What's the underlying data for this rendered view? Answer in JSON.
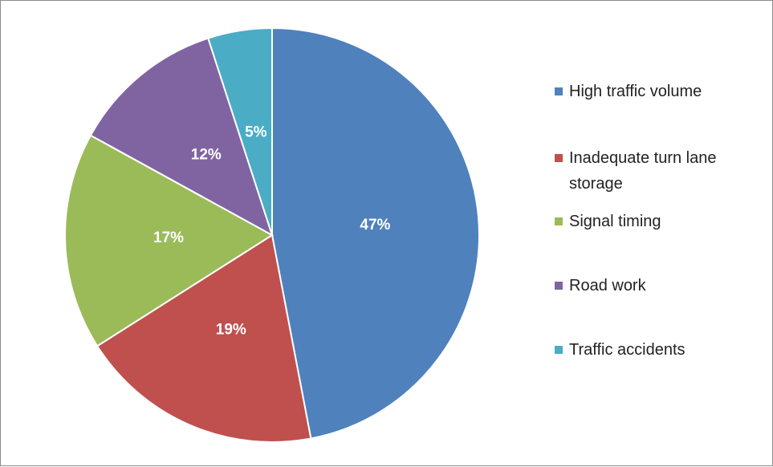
{
  "chart_data": {
    "type": "pie",
    "categories": [
      "High traffic volume",
      "Inadequate turn lane storage",
      "Signal timing",
      "Road work",
      "Traffic accidents"
    ],
    "values": [
      47,
      19,
      17,
      12,
      5
    ],
    "value_labels": [
      "47%",
      "19%",
      "17%",
      "12%",
      "5%"
    ],
    "colors": [
      "#4f81bd",
      "#c0504d",
      "#9bbb59",
      "#8064a2",
      "#4bacc6"
    ],
    "legend": "right"
  }
}
